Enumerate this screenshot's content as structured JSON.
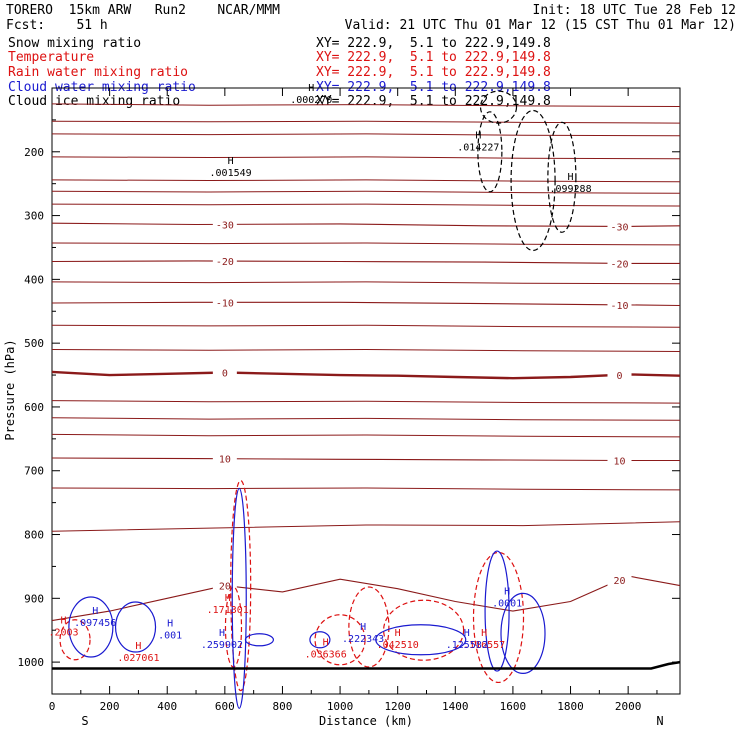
{
  "header": {
    "model": "TORERO  15km ARW   Run2    NCAR/MMM",
    "init": "Init: 18 UTC Tue 28 Feb 12",
    "fcst": "Fcst:    51 h",
    "valid": "Valid: 21 UTC Thu 01 Mar 12 (15 CST Thu 01 Mar 12)"
  },
  "legend": [
    {
      "label": "Snow mixing ratio",
      "xy": "XY= 222.9,  5.1 to 222.9,149.8",
      "color": "#000000"
    },
    {
      "label": "Temperature",
      "xy": "XY= 222.9,  5.1 to 222.9,149.8",
      "color": "#dd1111"
    },
    {
      "label": "Rain water mixing ratio",
      "xy": "XY= 222.9,  5.1 to 222.9,149.8",
      "color": "#dd1111"
    },
    {
      "label": "Cloud water mixing ratio",
      "xy": "XY= 222.9,  5.1 to 222.9,149.8",
      "color": "#1a1ad0"
    },
    {
      "label": "Cloud ice mixing ratio",
      "xy": "XY= 222.9,  5.1 to 222.9,149.8",
      "color": "#000000"
    }
  ],
  "chart_data": {
    "type": "line",
    "xlabel": "Distance (km)",
    "ylabel": "Pressure (hPa)",
    "xlim": [
      0,
      2180
    ],
    "ylim": [
      1050,
      100
    ],
    "x_ticks": [
      0,
      200,
      400,
      600,
      800,
      1000,
      1200,
      1400,
      1600,
      1800,
      2000
    ],
    "y_ticks": [
      200,
      300,
      400,
      500,
      600,
      700,
      800,
      900,
      1000
    ],
    "x_end_labels": [
      "S",
      "N"
    ],
    "temperature_contours": [
      {
        "level": -30,
        "x": [
          0,
          500,
          1000,
          1500,
          2000,
          2180
        ],
        "p": [
          312,
          314,
          313,
          316,
          317,
          316
        ]
      },
      {
        "level": -20,
        "x": [
          0,
          500,
          1000,
          1500,
          2000,
          2180
        ],
        "p": [
          372,
          371,
          372,
          373,
          375,
          375
        ]
      },
      {
        "level": -10,
        "x": [
          0,
          500,
          1000,
          1500,
          2000,
          2180
        ],
        "p": [
          437,
          436,
          436,
          438,
          440,
          441
        ]
      },
      {
        "level": 0,
        "x": [
          0,
          200,
          400,
          600,
          800,
          1000,
          1200,
          1400,
          1600,
          1800,
          2000,
          2180
        ],
        "p": [
          545,
          550,
          548,
          546,
          548,
          550,
          551,
          553,
          555,
          553,
          549,
          551
        ]
      },
      {
        "level": 10,
        "x": [
          0,
          500,
          1000,
          1500,
          2000,
          2180
        ],
        "p": [
          680,
          681,
          682,
          683,
          684,
          684
        ]
      },
      {
        "level": 20,
        "x": [
          0,
          200,
          400,
          600,
          800,
          1000,
          1200,
          1400,
          1600,
          1800,
          2000,
          2180
        ],
        "p": [
          935,
          920,
          900,
          880,
          890,
          870,
          885,
          905,
          920,
          905,
          865,
          880
        ]
      }
    ],
    "snow_maxima": [
      {
        "x": 620,
        "p": 235,
        "value": ".001549"
      },
      {
        "x": 900,
        "p": 120,
        "value": ".000270"
      },
      {
        "x": 1480,
        "p": 195,
        "value": ".014227"
      },
      {
        "x": 1800,
        "p": 260,
        "value": ".099288"
      }
    ],
    "rain_maxima": [
      {
        "x": 40,
        "p": 955,
        "value": ".2003"
      },
      {
        "x": 300,
        "p": 995,
        "value": ".027061"
      },
      {
        "x": 610,
        "p": 920,
        "value": ".171301"
      },
      {
        "x": 950,
        "p": 990,
        "value": ".036366"
      },
      {
        "x": 1200,
        "p": 975,
        "value": ".042510"
      },
      {
        "x": 1500,
        "p": 975,
        "value": ".116557"
      }
    ],
    "cloud_water_maxima": [
      {
        "x": 150,
        "p": 940,
        "value": ".097456"
      },
      {
        "x": 410,
        "p": 960,
        "value": ".001"
      },
      {
        "x": 590,
        "p": 975,
        "value": ".259902"
      },
      {
        "x": 1080,
        "p": 965,
        "value": ".222343"
      },
      {
        "x": 1440,
        "p": 975,
        "value": ".125582"
      },
      {
        "x": 1580,
        "p": 910,
        "value": ".0001"
      }
    ]
  }
}
